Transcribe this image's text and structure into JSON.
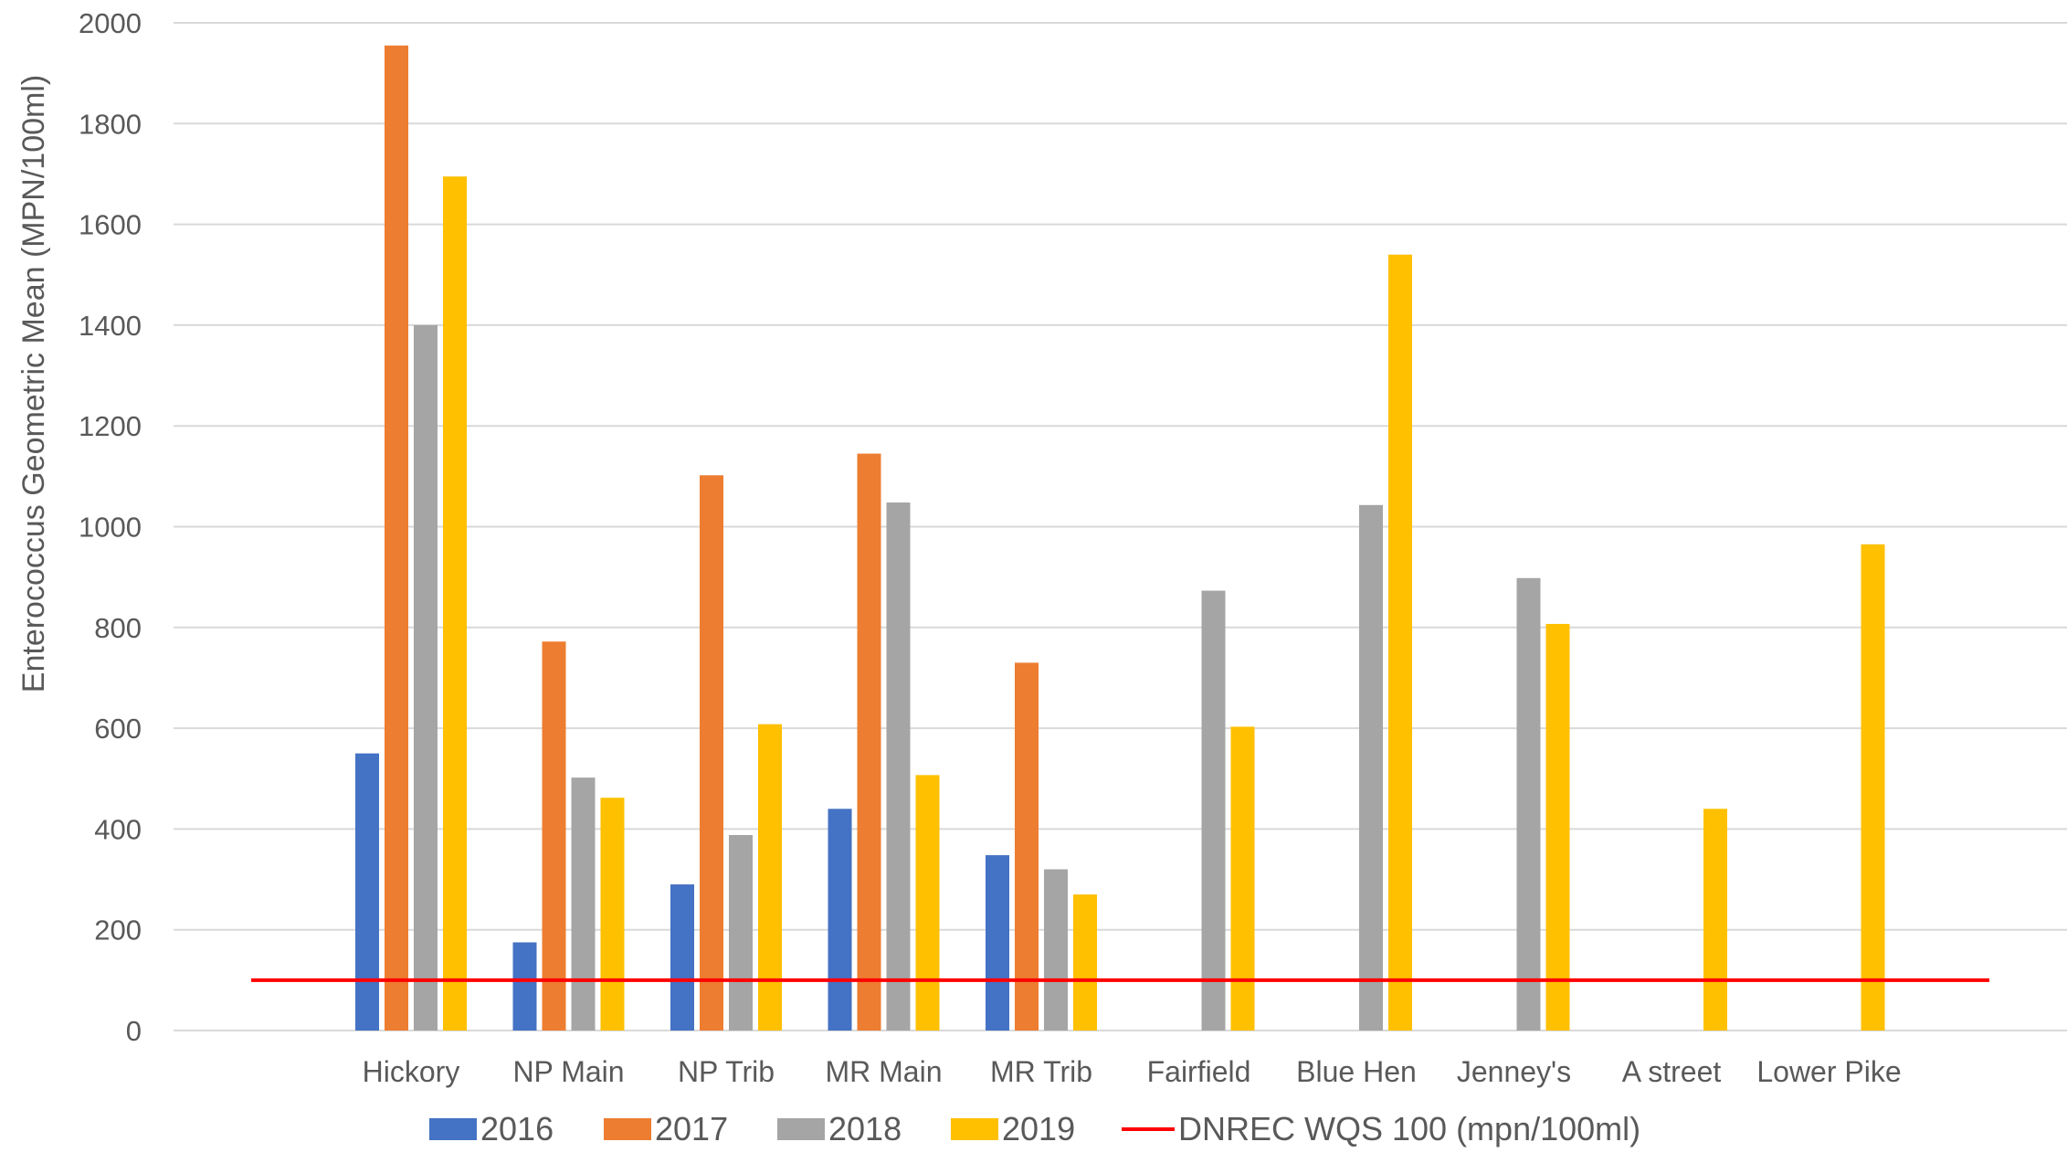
{
  "chart_data": {
    "type": "bar",
    "title": "",
    "xlabel": "",
    "ylabel": "Enterococcus Geometric Mean (MPN/100ml)",
    "ylim": [
      0,
      2000
    ],
    "yticks": [
      0,
      200,
      400,
      600,
      800,
      1000,
      1200,
      1400,
      1600,
      1800,
      2000
    ],
    "grid": true,
    "legend_position": "bottom",
    "categories": [
      "Hickory",
      "NP Main",
      "NP Trib",
      "MR Main",
      "MR Trib",
      "Fairfield",
      "Blue Hen",
      "Jenney's",
      "A street",
      "Lower Pike"
    ],
    "series": [
      {
        "name": "2016",
        "color": "#4472C4",
        "values": [
          550,
          175,
          290,
          440,
          348,
          null,
          null,
          null,
          null,
          null
        ]
      },
      {
        "name": "2017",
        "color": "#ED7D31",
        "values": [
          1955,
          772,
          1102,
          1145,
          730,
          null,
          null,
          null,
          null,
          null
        ]
      },
      {
        "name": "2018",
        "color": "#A5A5A5",
        "values": [
          1400,
          502,
          388,
          1048,
          320,
          873,
          1043,
          898,
          null,
          null
        ]
      },
      {
        "name": "2019",
        "color": "#FFC000",
        "values": [
          1695,
          462,
          608,
          507,
          270,
          603,
          1540,
          807,
          440,
          965
        ]
      }
    ],
    "reference_line": {
      "name": "DNREC WQS 100 (mpn/100ml)",
      "value": 100,
      "color": "#FF0000"
    }
  }
}
